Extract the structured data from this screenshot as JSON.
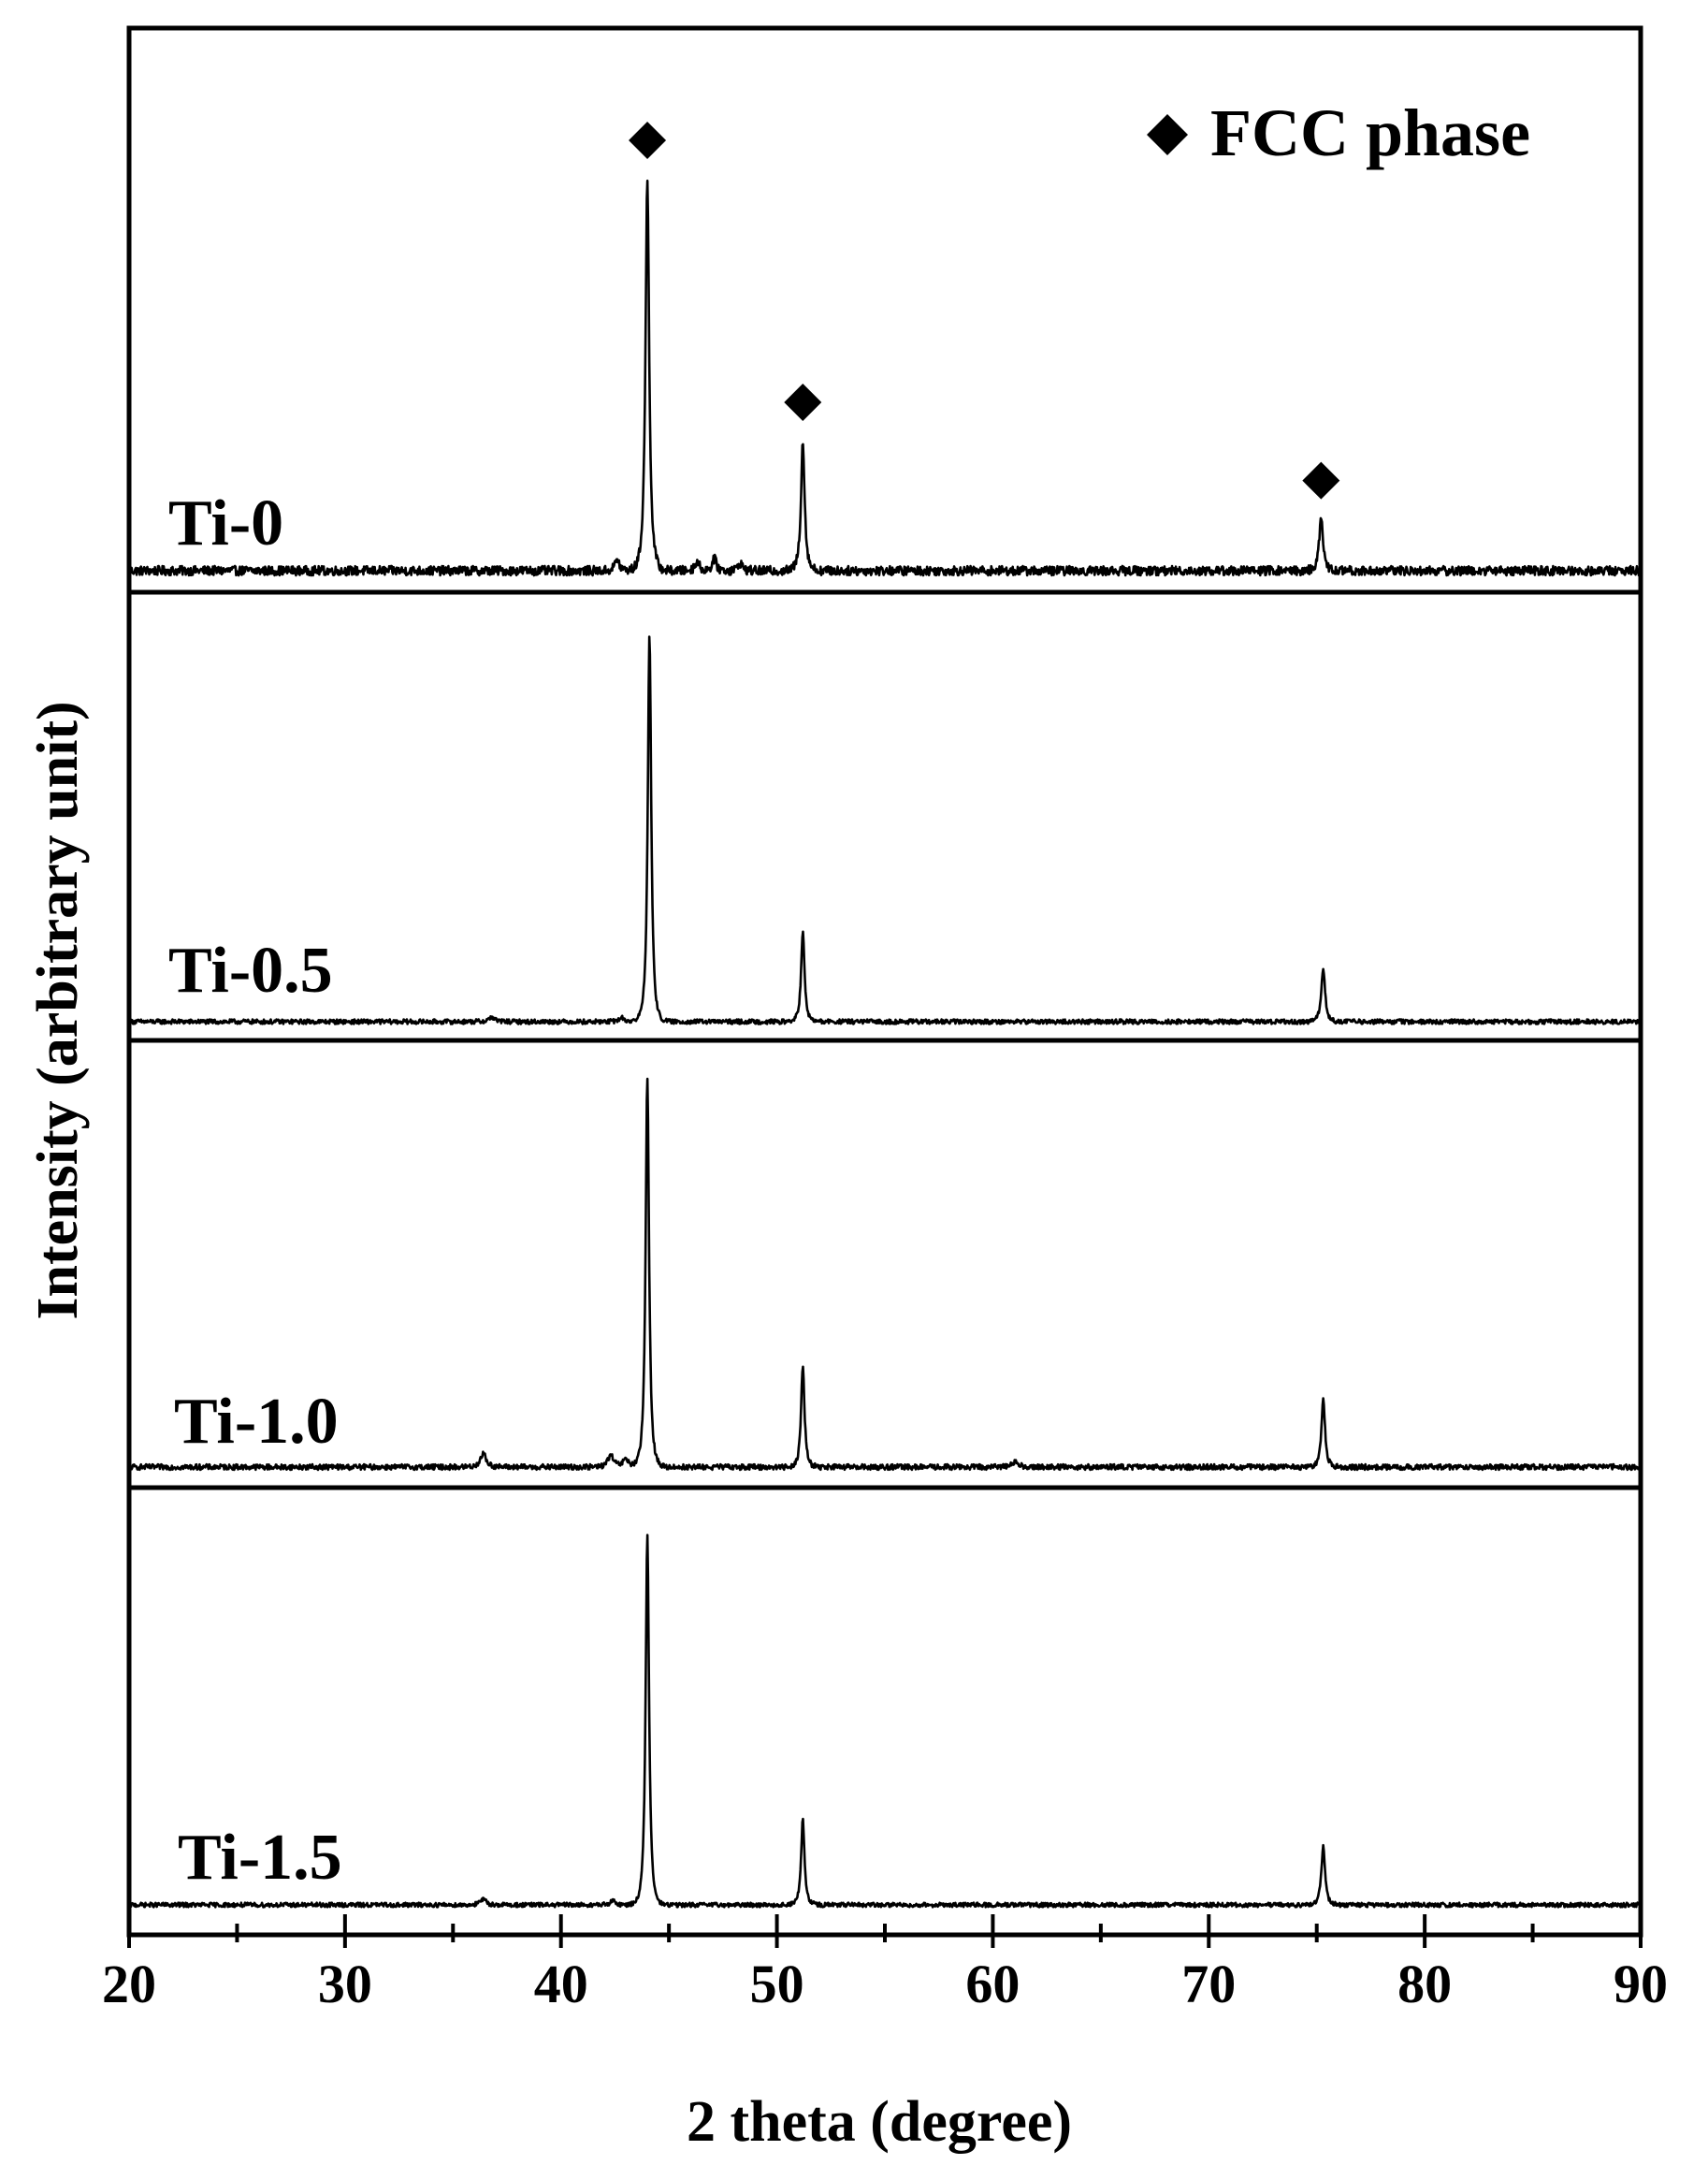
{
  "chart_data": {
    "type": "line",
    "layout": "stacked-panels",
    "xlabel": "2 theta (degree)",
    "ylabel": "Intensity (arbitrary unit)",
    "xlim": [
      20,
      90
    ],
    "xticks": [
      "20",
      "30",
      "40",
      "50",
      "60",
      "70",
      "80",
      "90"
    ],
    "legend": {
      "marker": "diamond",
      "label": "FCC phase",
      "placement": "top-right"
    },
    "peak_markers": {
      "panel": "Ti-0",
      "marker": "diamond",
      "positions": [
        44.0,
        51.2,
        75.2
      ]
    },
    "series": [
      {
        "name": "Ti-0",
        "peaks": [
          {
            "x": 44.0,
            "intensity": 1.0,
            "width": 0.13
          },
          {
            "x": 51.2,
            "intensity": 0.33,
            "width": 0.13
          },
          {
            "x": 75.2,
            "intensity": 0.13,
            "width": 0.14
          },
          {
            "x": 42.6,
            "intensity": 0.03,
            "width": 0.15
          },
          {
            "x": 46.3,
            "intensity": 0.025,
            "width": 0.15
          },
          {
            "x": 47.1,
            "intensity": 0.03,
            "width": 0.15
          },
          {
            "x": 48.3,
            "intensity": 0.02,
            "width": 0.15
          }
        ],
        "noise": 0.012
      },
      {
        "name": "Ti-0.5",
        "peaks": [
          {
            "x": 44.1,
            "intensity": 1.0,
            "width": 0.12
          },
          {
            "x": 51.2,
            "intensity": 0.23,
            "width": 0.12
          },
          {
            "x": 75.3,
            "intensity": 0.14,
            "width": 0.13
          },
          {
            "x": 36.8,
            "intensity": 0.012,
            "width": 0.2
          },
          {
            "x": 42.8,
            "intensity": 0.01,
            "width": 0.2
          }
        ],
        "noise": 0.006
      },
      {
        "name": "Ti-1.0",
        "peaks": [
          {
            "x": 44.0,
            "intensity": 1.0,
            "width": 0.12
          },
          {
            "x": 51.2,
            "intensity": 0.26,
            "width": 0.12
          },
          {
            "x": 75.3,
            "intensity": 0.17,
            "width": 0.13
          },
          {
            "x": 36.4,
            "intensity": 0.035,
            "width": 0.2
          },
          {
            "x": 42.3,
            "intensity": 0.03,
            "width": 0.2
          },
          {
            "x": 43.0,
            "intensity": 0.02,
            "width": 0.2
          },
          {
            "x": 61.0,
            "intensity": 0.012,
            "width": 0.3
          }
        ],
        "noise": 0.007
      },
      {
        "name": "Ti-1.5",
        "peaks": [
          {
            "x": 44.0,
            "intensity": 1.0,
            "width": 0.12
          },
          {
            "x": 51.2,
            "intensity": 0.23,
            "width": 0.12
          },
          {
            "x": 75.3,
            "intensity": 0.16,
            "width": 0.13
          },
          {
            "x": 36.4,
            "intensity": 0.015,
            "width": 0.2
          },
          {
            "x": 42.4,
            "intensity": 0.01,
            "width": 0.2
          }
        ],
        "noise": 0.006
      }
    ]
  },
  "icons": {
    "peak_marker": "diamond-icon"
  }
}
